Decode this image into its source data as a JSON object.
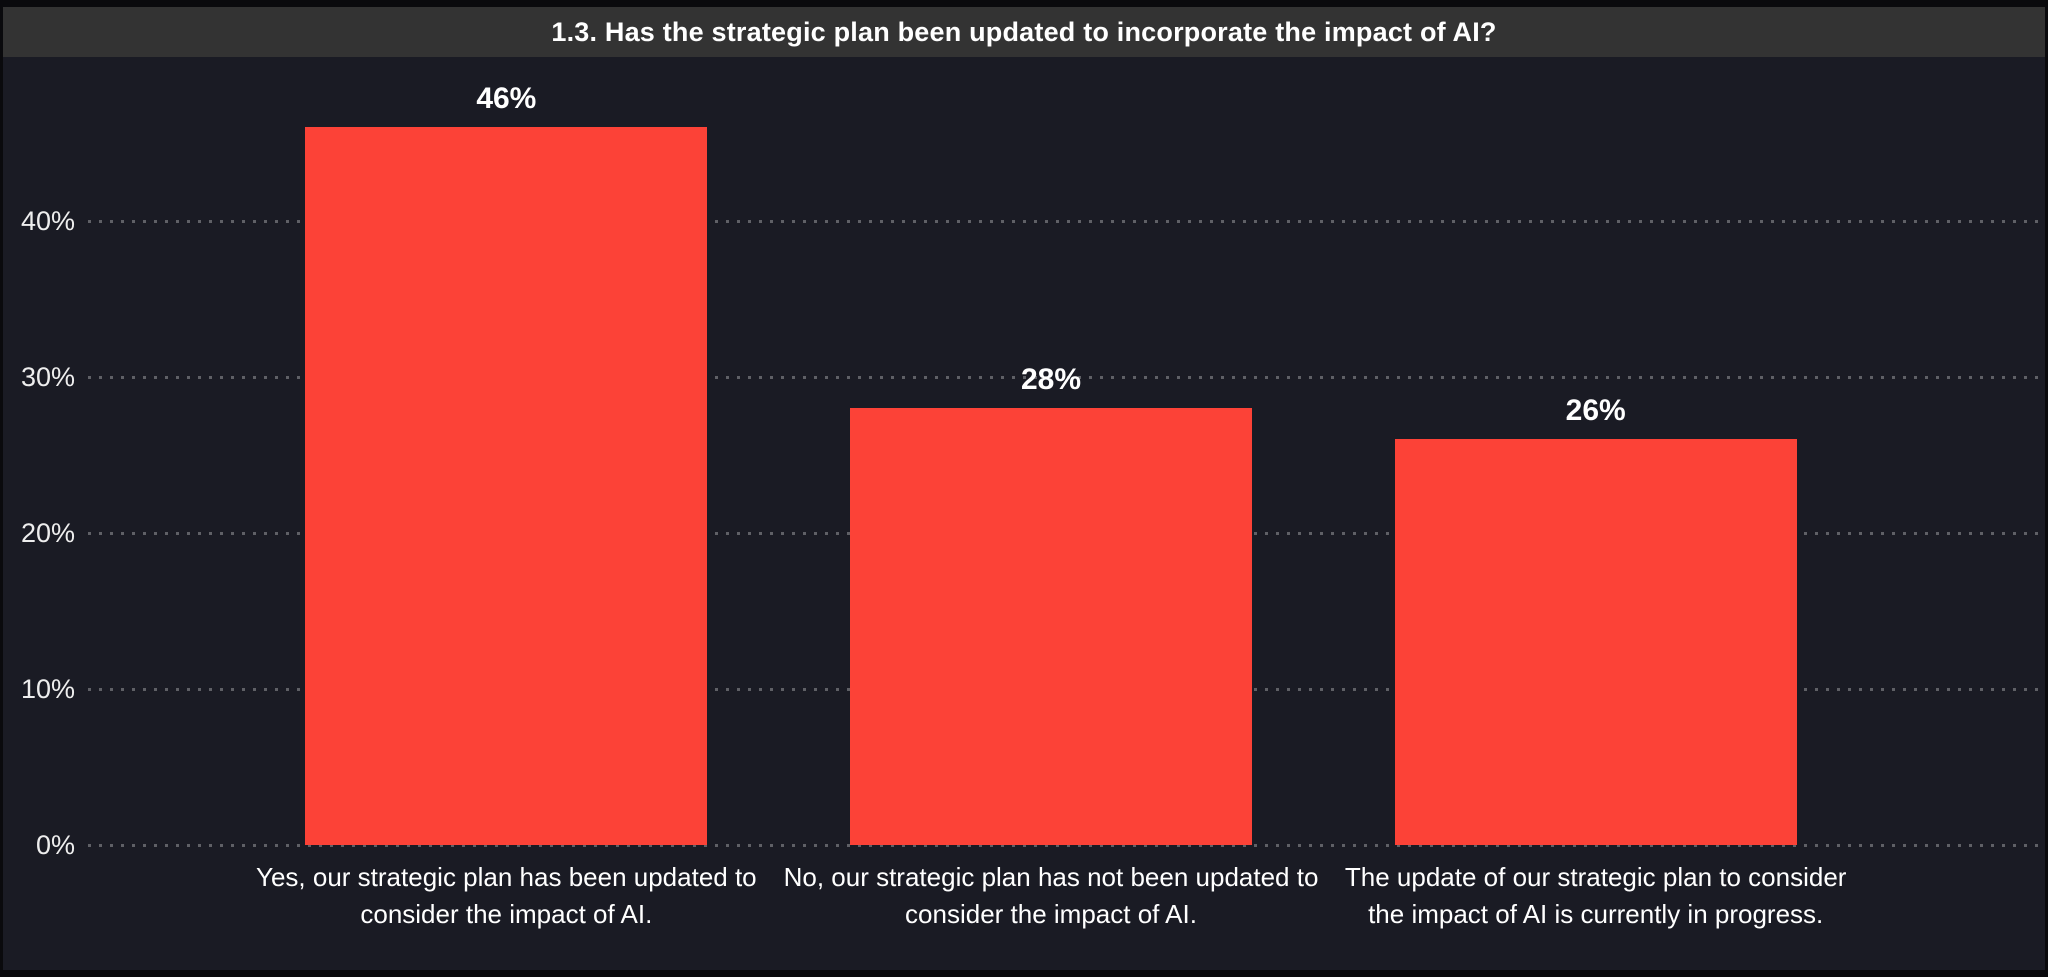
{
  "chart": {
    "title": "1.3. Has the strategic plan been updated to incorporate the impact of AI?"
  },
  "chart_data": {
    "type": "bar",
    "title": "1.3. Has the strategic plan been updated to incorporate the impact of AI?",
    "categories": [
      "Yes, our strategic plan has been updated to consider the impact of AI.",
      "No, our strategic plan has not been updated to consider the impact of AI.",
      "The update of our strategic plan to consider the impact of AI is currently in progress."
    ],
    "values": [
      46,
      28,
      26
    ],
    "value_labels": [
      "46%",
      "28%",
      "26%"
    ],
    "yticks": [
      "0%",
      "10%",
      "20%",
      "30%",
      "40%"
    ],
    "ytick_values": [
      0,
      10,
      20,
      30,
      40
    ],
    "ylim": [
      0,
      50.5
    ],
    "xlabel": "",
    "ylabel": "",
    "grid": "horizontal-dotted",
    "legend": "none",
    "colors": {
      "bar": "#fc4237",
      "chart_background": "#1a1b24",
      "title_bar_background": "#333333",
      "title_text": "#ffffff",
      "axis_text": "#eeeeee",
      "value_label_text": "#ffffff",
      "category_text": "#ffffff",
      "gridline": "rgba(255,255,255,0.30)",
      "outer_border": "#0a0a0d"
    }
  }
}
